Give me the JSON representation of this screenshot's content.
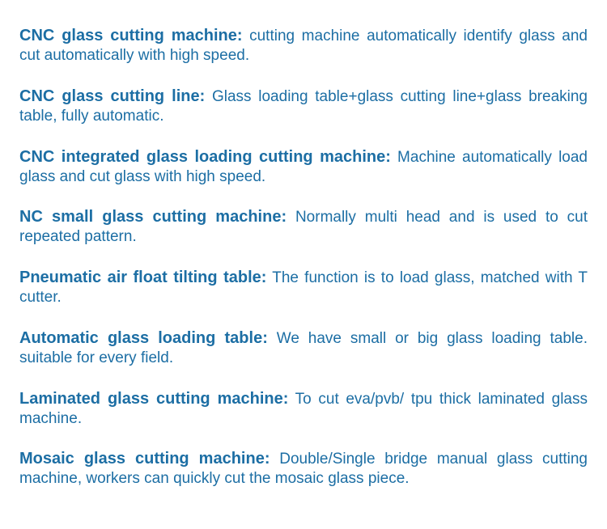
{
  "text_color": "#1c6ea4",
  "background_color": "#ffffff",
  "term_fontsize": 20,
  "desc_fontsize": 19,
  "entries": [
    {
      "term": "CNC glass cutting machine:",
      "desc": " cutting machine automatically identify glass and cut automatically with high speed."
    },
    {
      "term": "CNC glass cutting line:",
      "desc": " Glass loading table+glass cutting line+glass breaking table, fully automatic."
    },
    {
      "term": "CNC integrated glass loading cutting machine:",
      "desc": " Machine automatically load glass and cut glass with high speed."
    },
    {
      "term": "NC small glass cutting machine:",
      "desc": " Normally multi head and is used to cut repeated pattern."
    },
    {
      "term": "Pneumatic air float tilting table:",
      "desc": " The function is to load glass, matched with T cutter."
    },
    {
      "term": "Automatic glass loading table:",
      "desc": " We have small or big glass loading table. suitable for every field."
    },
    {
      "term": "Laminated glass cutting machine:",
      "desc": " To cut eva/pvb/ tpu thick laminated glass machine."
    },
    {
      "term": "Mosaic glass cutting machine:",
      "desc": " Double/Single bridge manual glass cutting machine, workers can quickly cut the mosaic glass piece."
    }
  ]
}
